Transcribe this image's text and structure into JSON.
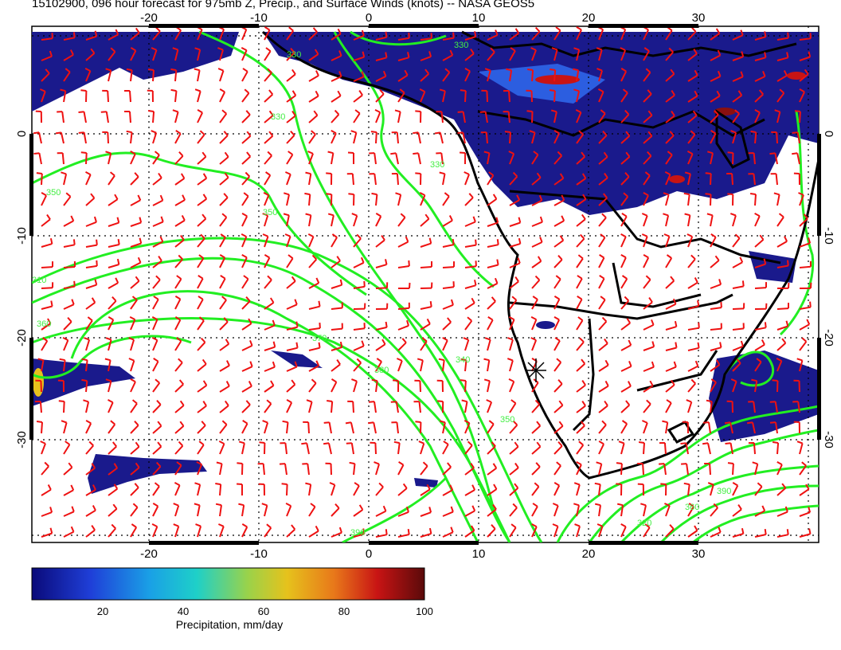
{
  "title": "15102900, 096 hour forecast for 975mb Z, Precip., and Surface Winds (knots) -- NASA GEOS5",
  "lon_ticks": [
    "-20",
    "-10",
    "0",
    "10",
    "20",
    "30"
  ],
  "lat_ticks": [
    "0",
    "-10",
    "-20",
    "-30"
  ],
  "colorbar": {
    "label": "Precipitation, mm/day",
    "ticks": [
      "20",
      "40",
      "60",
      "80",
      "100"
    ],
    "range": [
      0,
      100
    ],
    "colors": [
      "#0a0a7a",
      "#1f3fd8",
      "#1aa0e6",
      "#1ed0c8",
      "#9ad24a",
      "#e6c21c",
      "#e8781a",
      "#c81414",
      "#5a0a0a"
    ]
  },
  "contour_labels": [
    "330",
    "350",
    "360",
    "370",
    "380",
    "390",
    "340",
    "320",
    "310"
  ],
  "colors": {
    "contour": "#22ee22",
    "barb": "#ee1111",
    "coast": "#000000",
    "precip_dark": "#1a1a8c"
  },
  "icons": {
    "marker": "star-marker-icon"
  }
}
